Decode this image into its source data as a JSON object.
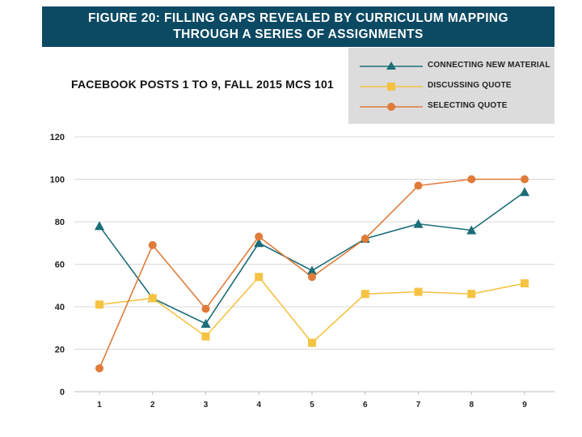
{
  "header": {
    "line1": "FIGURE 20: FILLING GAPS REVEALED BY CURRICULUM MAPPING",
    "line2": "THROUGH A SERIES OF ASSIGNMENTS"
  },
  "chart_data": {
    "type": "line",
    "title": "FACEBOOK POSTS 1 TO 9, FALL 2015 MCS 101",
    "xlabel": "",
    "ylabel": "",
    "x": [
      1,
      2,
      3,
      4,
      5,
      6,
      7,
      8,
      9
    ],
    "ylim": [
      0,
      120
    ],
    "yticks": [
      0,
      20,
      40,
      60,
      80,
      100,
      120
    ],
    "grid": true,
    "legend_position": "top-right",
    "series": [
      {
        "name": "CONNECTING NEW MATERIAL",
        "color": "#1b6e78",
        "marker": "triangle",
        "values": [
          78,
          44,
          32,
          70,
          57,
          72,
          79,
          76,
          94
        ]
      },
      {
        "name": "DISCUSSING QUOTE",
        "color": "#f5c342",
        "marker": "square",
        "values": [
          41,
          44,
          26,
          54,
          23,
          46,
          47,
          46,
          51
        ]
      },
      {
        "name": "SELECTING QUOTE",
        "color": "#e07b39",
        "marker": "circle",
        "values": [
          11,
          69,
          39,
          73,
          54,
          72,
          97,
          100,
          100
        ]
      }
    ]
  }
}
